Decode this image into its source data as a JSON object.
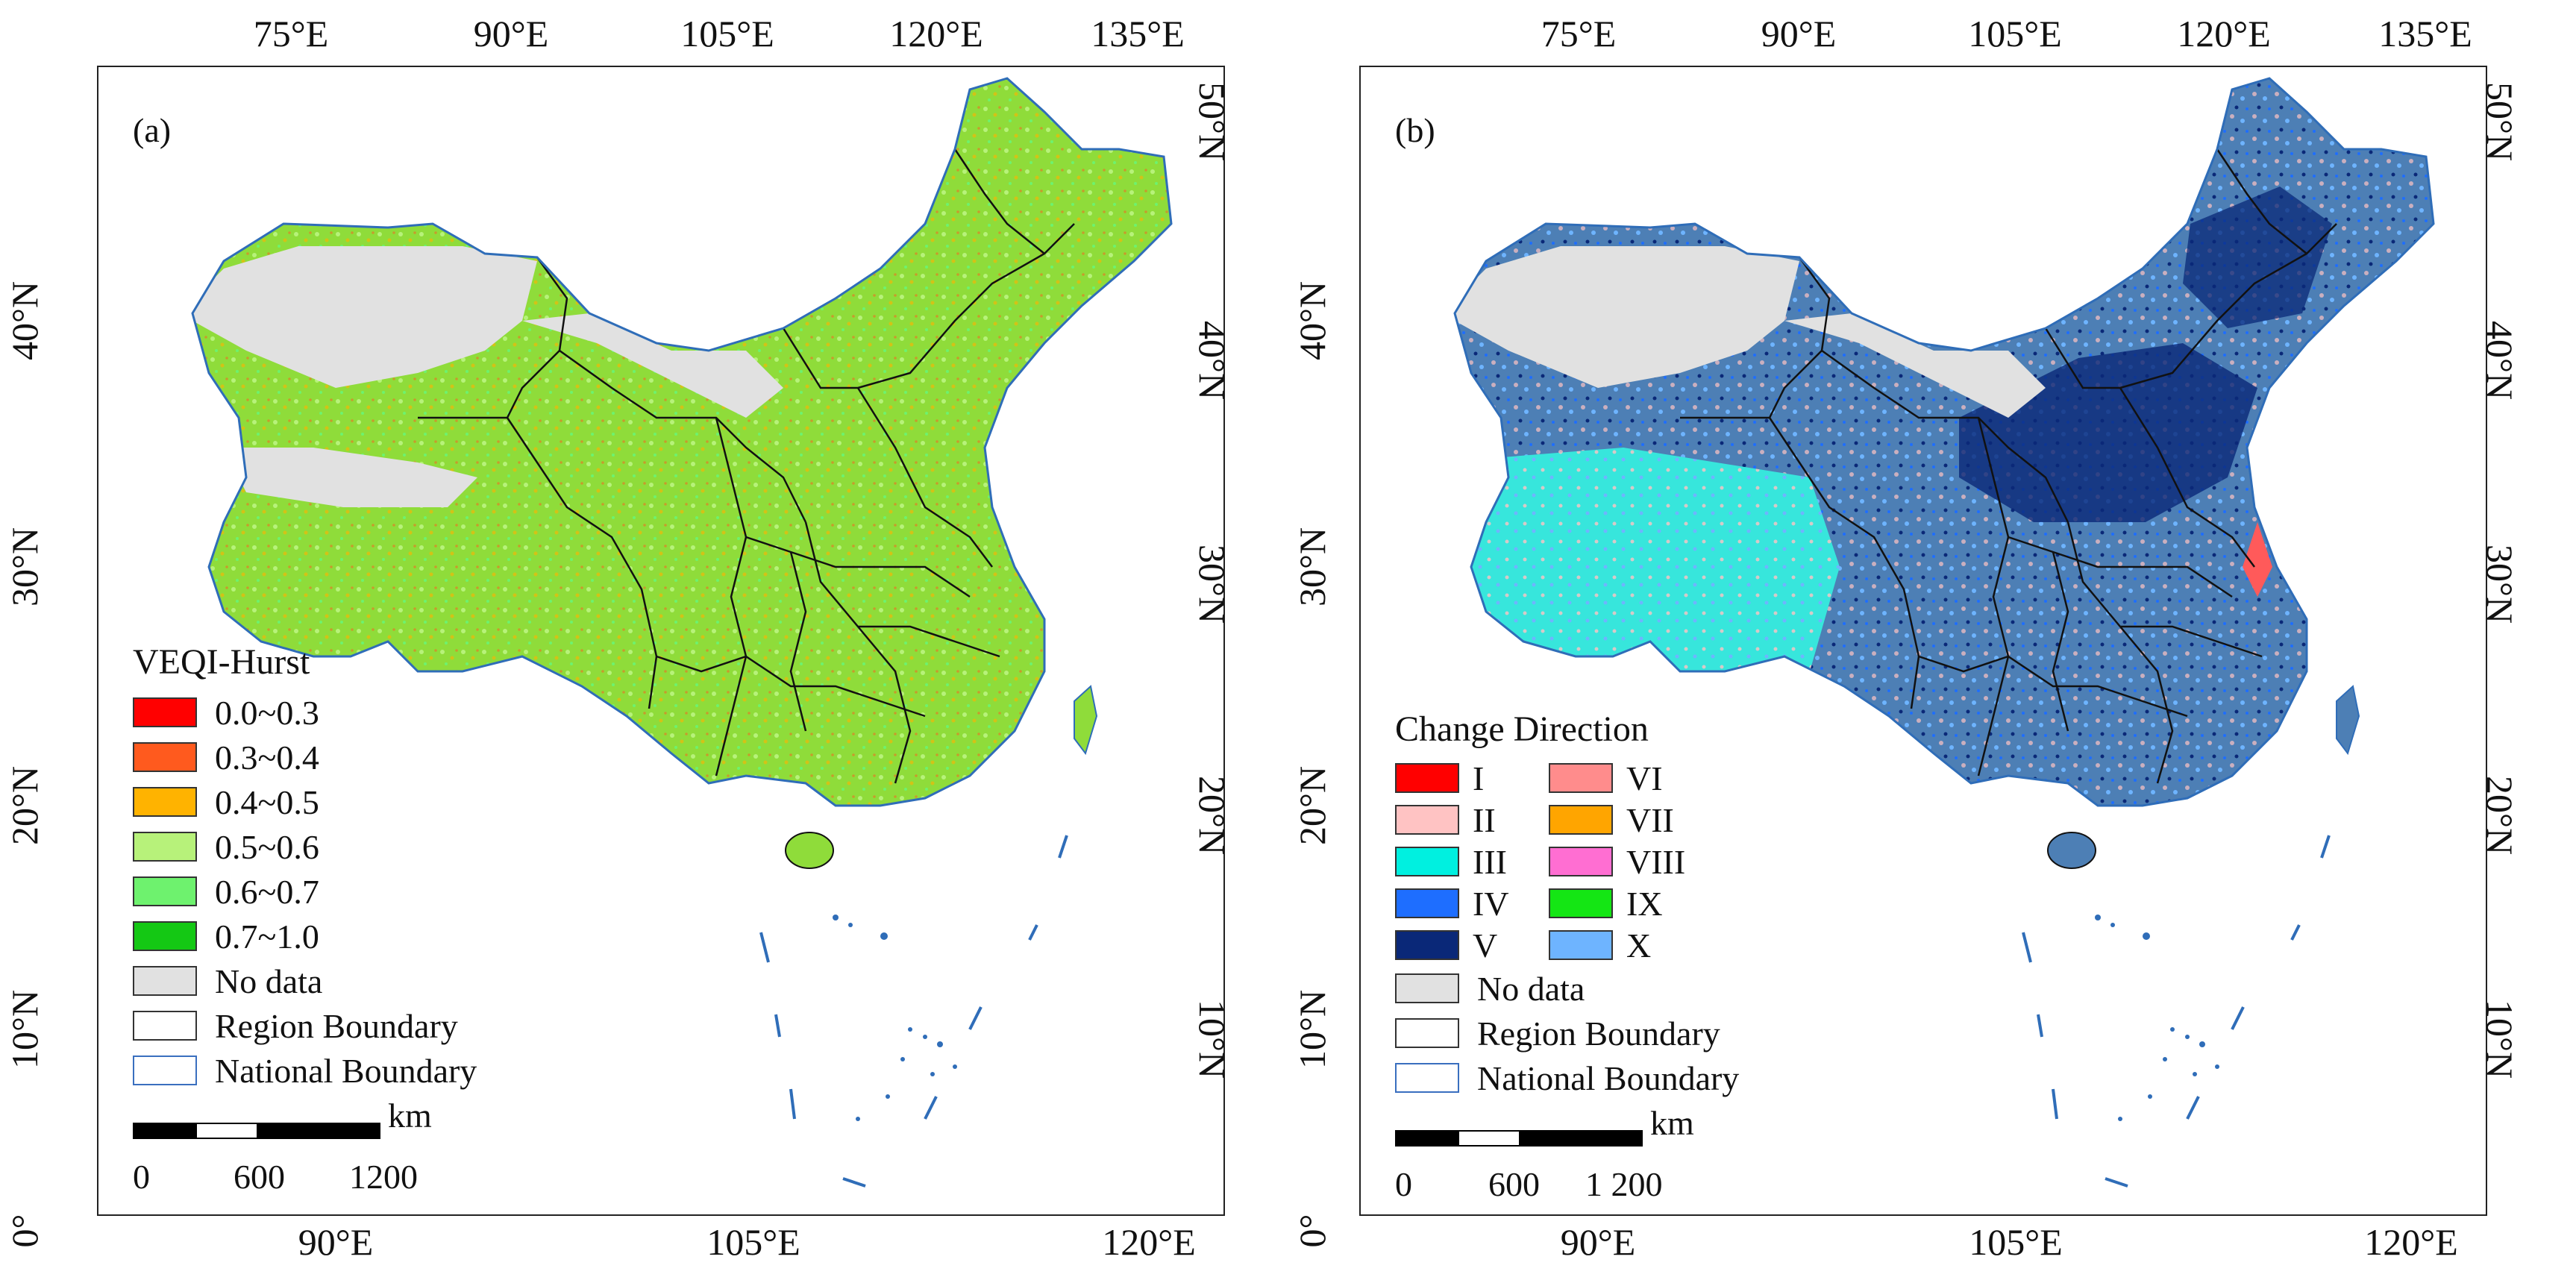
{
  "panel_a": {
    "label": "(a)",
    "top_ticks": [
      "75°E",
      "90°E",
      "105°E",
      "120°E",
      "135°E"
    ],
    "bottom_ticks": [
      "90°E",
      "105°E",
      "120°E"
    ],
    "left_ticks": [
      "40°N",
      "30°N",
      "20°N",
      "10°N",
      "0°"
    ],
    "right_ticks": [
      "50°N",
      "40°N",
      "30°N",
      "20°N",
      "10°N"
    ],
    "legend": {
      "title": "VEQI-Hurst",
      "items": [
        {
          "label": "0.0~0.3",
          "color": "#ff0000"
        },
        {
          "label": "0.3~0.4",
          "color": "#ff5a1e"
        },
        {
          "label": "0.4~0.5",
          "color": "#ffb300"
        },
        {
          "label": "0.5~0.6",
          "color": "#b7f27a"
        },
        {
          "label": "0.6~0.7",
          "color": "#6ef26e"
        },
        {
          "label": "0.7~1.0",
          "color": "#14c814"
        },
        {
          "label": "No data",
          "color": "#e1e1e1"
        },
        {
          "label": "Region Boundary",
          "color": "#ffffff"
        },
        {
          "label": "National Boundary",
          "color": "#ffffff",
          "border": "#3a6fbf"
        }
      ],
      "scale": {
        "unit": "km",
        "labels": [
          "0",
          "600",
          "1200"
        ]
      }
    }
  },
  "panel_b": {
    "label": "(b)",
    "top_ticks": [
      "75°E",
      "90°E",
      "105°E",
      "120°E",
      "135°E"
    ],
    "bottom_ticks": [
      "90°E",
      "105°E",
      "120°E"
    ],
    "left_ticks": [
      "40°N",
      "30°N",
      "20°N",
      "10°N",
      "0°"
    ],
    "right_ticks": [
      "50°N",
      "40°N",
      "30°N",
      "20°N",
      "10°N"
    ],
    "legend": {
      "title": "Change Direction",
      "items": [
        {
          "label": "I",
          "color": "#ff0000"
        },
        {
          "label": "VI",
          "color": "#ff8c8c"
        },
        {
          "label": "II",
          "color": "#ffc3c3"
        },
        {
          "label": "VII",
          "color": "#ffa500"
        },
        {
          "label": "III",
          "color": "#00f0e0"
        },
        {
          "label": "VIII",
          "color": "#ff6ed2"
        },
        {
          "label": "IV",
          "color": "#1e6eff"
        },
        {
          "label": "IX",
          "color": "#14e614"
        },
        {
          "label": "V",
          "color": "#0a2878"
        },
        {
          "label": "X",
          "color": "#6eb4ff"
        }
      ],
      "extra_items": [
        {
          "label": "No data",
          "color": "#e1e1e1"
        },
        {
          "label": "Region Boundary",
          "color": "#ffffff"
        },
        {
          "label": "National Boundary",
          "color": "#ffffff",
          "border": "#3a6fbf"
        }
      ],
      "scale": {
        "unit": "km",
        "labels": [
          "0",
          "600",
          "1 200"
        ]
      }
    }
  },
  "colors": {
    "no_data": "#e1e1e1",
    "green_base": "#8fdc3a",
    "blue_base": "#3f6fa8",
    "national_boundary": "#2f6db8",
    "region_boundary": "#111111"
  }
}
